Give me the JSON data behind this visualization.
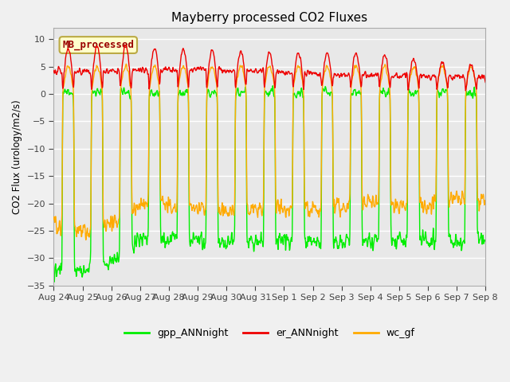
{
  "title": "Mayberry processed CO2 Fluxes",
  "ylabel": "CO2 Flux (urology/m2/s)",
  "ylim": [
    -35,
    12
  ],
  "yticks": [
    -35,
    -30,
    -25,
    -20,
    -15,
    -10,
    -5,
    0,
    5,
    10
  ],
  "xtick_labels": [
    "Aug 24",
    "Aug 25",
    "Aug 26",
    "Aug 27",
    "Aug 28",
    "Aug 29",
    "Aug 30",
    "Aug 31",
    "Sep 1",
    "Sep 2",
    "Sep 3",
    "Sep 4",
    "Sep 5",
    "Sep 6",
    "Sep 7",
    "Sep 8"
  ],
  "gpp_color": "#00ee00",
  "er_color": "#ee0000",
  "wc_color": "#ffaa00",
  "gpp_label": "gpp_ANNnight",
  "er_label": "er_ANNnight",
  "wc_label": "wc_gf",
  "annotation_text": "MB_processed",
  "annotation_bg": "#ffffcc",
  "annotation_border": "#bbaa44",
  "fig_bg": "#f0f0f0",
  "plot_bg": "#e8e8e8",
  "linewidth": 1.0
}
